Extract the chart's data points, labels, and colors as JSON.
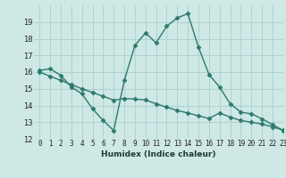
{
  "line1_x": [
    0,
    1,
    2,
    3,
    4,
    5,
    6,
    7,
    8,
    9,
    10,
    11,
    12,
    13,
    14,
    15,
    16,
    17,
    18,
    19,
    20,
    21,
    22,
    23
  ],
  "line1_y": [
    16.1,
    16.2,
    15.8,
    15.1,
    14.7,
    13.8,
    13.1,
    12.5,
    15.5,
    17.6,
    18.35,
    17.75,
    18.75,
    19.25,
    19.5,
    17.5,
    15.85,
    15.1,
    14.1,
    13.6,
    13.5,
    13.2,
    12.85,
    12.5
  ],
  "line2_x": [
    0,
    1,
    2,
    3,
    4,
    5,
    6,
    7,
    8,
    9,
    10,
    11,
    12,
    13,
    14,
    15,
    16,
    17,
    18,
    19,
    20,
    21,
    22,
    23
  ],
  "line2_y": [
    16.0,
    15.75,
    15.5,
    15.25,
    15.0,
    14.78,
    14.55,
    14.32,
    14.42,
    14.38,
    14.33,
    14.1,
    13.9,
    13.7,
    13.55,
    13.38,
    13.22,
    13.55,
    13.3,
    13.1,
    13.0,
    12.88,
    12.72,
    12.52
  ],
  "line_color": "#2d7a6a",
  "bg_color": "#cde8e5",
  "grid_color": "#aacfcc",
  "xlabel": "Humidex (Indice chaleur)",
  "ylim": [
    12,
    20
  ],
  "xlim": [
    -0.5,
    23
  ],
  "yticks": [
    12,
    13,
    14,
    15,
    16,
    17,
    18,
    19
  ],
  "xticks": [
    0,
    1,
    2,
    3,
    4,
    5,
    6,
    7,
    8,
    9,
    10,
    11,
    12,
    13,
    14,
    15,
    16,
    17,
    18,
    19,
    20,
    21,
    22,
    23
  ],
  "xtick_labels": [
    "0",
    "1",
    "2",
    "3",
    "4",
    "5",
    "6",
    "7",
    "8",
    "9",
    "10",
    "11",
    "12",
    "13",
    "14",
    "15",
    "16",
    "17",
    "18",
    "19",
    "20",
    "21",
    "22",
    "23"
  ],
  "marker": "D",
  "markersize": 2.5,
  "linewidth": 1.0,
  "xlabel_fontsize": 6.5,
  "tick_fontsize": 5.5,
  "ytick_fontsize": 6.0
}
